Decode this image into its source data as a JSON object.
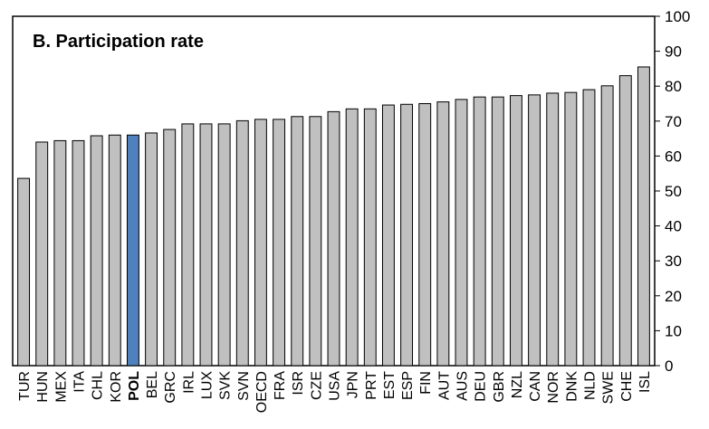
{
  "chart_data": {
    "type": "bar",
    "title": "B. Participation rate",
    "xlabel": "",
    "ylabel": "",
    "ylim": [
      0,
      100
    ],
    "yticks": [
      0,
      10,
      20,
      30,
      40,
      50,
      60,
      70,
      80,
      90,
      100
    ],
    "grid": false,
    "highlight": "POL",
    "colors": {
      "bar": "#c0c0c0",
      "highlight": "#4f81bd",
      "edge": "#000000"
    },
    "categories": [
      "TUR",
      "HUN",
      "MEX",
      "ITA",
      "CHL",
      "KOR",
      "POL",
      "BEL",
      "GRC",
      "IRL",
      "LUX",
      "SVK",
      "SVN",
      "OECD",
      "FRA",
      "ISR",
      "CZE",
      "USA",
      "JPN",
      "PRT",
      "EST",
      "ESP",
      "FIN",
      "AUT",
      "AUS",
      "DEU",
      "GBR",
      "NZL",
      "CAN",
      "NOR",
      "DNK",
      "NLD",
      "SWE",
      "CHE",
      "ISL"
    ],
    "values": [
      53.6,
      64.0,
      64.4,
      64.4,
      65.8,
      66.0,
      66.0,
      66.6,
      67.6,
      69.2,
      69.2,
      69.2,
      70.1,
      70.5,
      70.5,
      71.3,
      71.3,
      72.7,
      73.5,
      73.5,
      74.6,
      74.8,
      75.0,
      75.5,
      76.2,
      76.9,
      76.9,
      77.3,
      77.5,
      78.0,
      78.2,
      79.0,
      80.1,
      83.0,
      85.5
    ]
  }
}
